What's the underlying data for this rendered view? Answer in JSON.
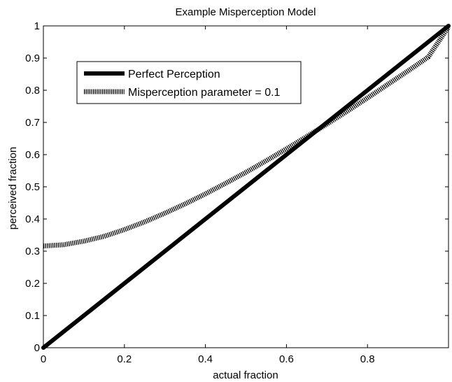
{
  "chart_data": {
    "type": "line",
    "title": "Example Misperception Model",
    "xlabel": "actual fraction",
    "ylabel": "perceived fraction",
    "xlim": [
      0,
      1
    ],
    "ylim": [
      0,
      1
    ],
    "x_ticks": [
      "0",
      "0.2",
      "0.4",
      "0.6",
      "0.8"
    ],
    "y_ticks": [
      "0",
      "0.1",
      "0.2",
      "0.3",
      "0.4",
      "0.5",
      "0.6",
      "0.7",
      "0.8",
      "0.9",
      "1"
    ],
    "grid": false,
    "legend_position": "top-left",
    "series": [
      {
        "name": "Perfect Perception",
        "style": "solid-thick",
        "color": "#000000",
        "x": [
          0,
          1
        ],
        "y": [
          0,
          1
        ]
      },
      {
        "name": "Misperception parameter = 0.1",
        "style": "dotted-thick",
        "color": "#000000",
        "x": [
          0,
          0.05,
          0.1,
          0.15,
          0.2,
          0.25,
          0.3,
          0.35,
          0.4,
          0.45,
          0.5,
          0.55,
          0.6,
          0.65,
          0.7,
          0.75,
          0.8,
          0.85,
          0.9,
          0.95,
          1
        ],
        "y": [
          0.316,
          0.32,
          0.331,
          0.346,
          0.367,
          0.391,
          0.418,
          0.447,
          0.478,
          0.511,
          0.545,
          0.581,
          0.618,
          0.656,
          0.695,
          0.735,
          0.776,
          0.818,
          0.86,
          0.903,
          0.997
        ]
      }
    ]
  }
}
